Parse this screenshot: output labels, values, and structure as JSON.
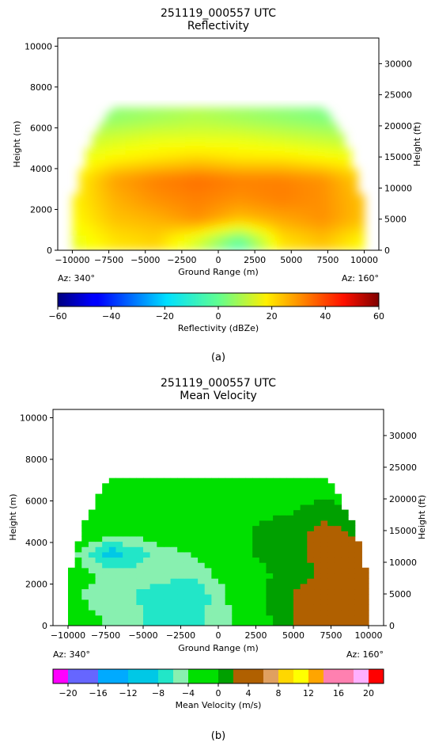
{
  "chart_data": [
    {
      "type": "heatmap",
      "panel_label": "(a)",
      "title_line1": "251119_000557 UTC",
      "title_line2": "Reflectivity",
      "xlabel": "Ground Range (m)",
      "ylabel_left": "Height (m)",
      "ylabel_right": "Height (ft)",
      "xlim": [
        -11000,
        11000
      ],
      "ylim": [
        0,
        10400
      ],
      "x_ticks": [
        -10000,
        -7500,
        -5000,
        -2500,
        0,
        2500,
        5000,
        7500,
        10000
      ],
      "x_tick_labels": [
        "−10000",
        "−7500",
        "−5000",
        "−2500",
        "0",
        "2500",
        "5000",
        "7500",
        "10000"
      ],
      "y_ticks": [
        0,
        2000,
        4000,
        6000,
        8000,
        10000
      ],
      "y_tick_labels": [
        "0",
        "2000",
        "4000",
        "6000",
        "8000",
        "10000"
      ],
      "y_right_ticks_ft": [
        0,
        5000,
        10000,
        15000,
        20000,
        25000,
        30000
      ],
      "y_right_tick_labels": [
        "0",
        "5000",
        "10000",
        "15000",
        "20000",
        "25000",
        "30000"
      ],
      "az_left": "Az: 340°",
      "az_right": "Az: 160°",
      "colorbar": {
        "label": "Reflectivity (dBZe)",
        "range": [
          -60,
          60
        ],
        "ticks": [
          -60,
          -40,
          -20,
          0,
          20,
          40,
          60
        ],
        "tick_labels": [
          "−60",
          "−40",
          "−20",
          "0",
          "20",
          "40",
          "60"
        ],
        "colormap": "jet"
      },
      "echo_top_height_m": 7000,
      "field_dBZe": {
        "rows_height_m": [
          500,
          1500,
          2500,
          3500,
          4500,
          5500,
          6500
        ],
        "values": [
          [
            12,
            18,
            20,
            10,
            -5,
            18,
            22,
            15
          ],
          [
            15,
            22,
            24,
            28,
            22,
            25,
            28,
            22
          ],
          [
            16,
            24,
            28,
            30,
            28,
            30,
            28,
            22
          ],
          [
            15,
            26,
            30,
            32,
            30,
            30,
            28,
            20
          ],
          [
            12,
            16,
            18,
            20,
            18,
            18,
            16,
            14
          ],
          [
            8,
            10,
            12,
            12,
            12,
            10,
            8,
            6
          ],
          [
            0,
            2,
            4,
            6,
            4,
            2,
            0,
            -2
          ]
        ]
      }
    },
    {
      "type": "heatmap",
      "panel_label": "(b)",
      "title_line1": "251119_000557 UTC",
      "title_line2": "Mean Velocity",
      "xlabel": "Ground Range (m)",
      "ylabel_left": "Height (m)",
      "ylabel_right": "Height (ft)",
      "xlim": [
        -11000,
        11000
      ],
      "ylim": [
        0,
        10400
      ],
      "x_ticks": [
        -10000,
        -7500,
        -5000,
        -2500,
        0,
        2500,
        5000,
        7500,
        10000
      ],
      "x_tick_labels": [
        "−10000",
        "−7500",
        "−5000",
        "−2500",
        "0",
        "2500",
        "5000",
        "7500",
        "10000"
      ],
      "y_ticks": [
        0,
        2000,
        4000,
        6000,
        8000,
        10000
      ],
      "y_tick_labels": [
        "0",
        "2000",
        "4000",
        "6000",
        "8000",
        "10000"
      ],
      "y_right_ticks_ft": [
        0,
        5000,
        10000,
        15000,
        20000,
        25000,
        30000
      ],
      "y_right_tick_labels": [
        "0",
        "5000",
        "10000",
        "15000",
        "20000",
        "25000",
        "30000"
      ],
      "az_left": "Az: 340°",
      "az_right": "Az: 160°",
      "colorbar": {
        "label": "Mean Velocity (m/s)",
        "range": [
          -22,
          22
        ],
        "ticks": [
          -20,
          -16,
          -12,
          -8,
          -4,
          0,
          4,
          8,
          12,
          16,
          20
        ],
        "tick_labels": [
          "−20",
          "−16",
          "−12",
          "−8",
          "−4",
          "0",
          "4",
          "8",
          "12",
          "16",
          "20"
        ],
        "discrete_colors": [
          "#ff00ff",
          "#6666ff",
          "#6666ff",
          "#00aaff",
          "#00aaff",
          "#00c8e6",
          "#00c8e6",
          "#22e6c8",
          "#88f0b0",
          "#00e000",
          "#00e000",
          "#00a000",
          "#b06000",
          "#b06000",
          "#e0a060",
          "#ffd700",
          "#ffff00",
          "#ffa500",
          "#ff80b0",
          "#ff80b0",
          "#ffb0ff",
          "#ff0000"
        ]
      },
      "echo_top_height_m": 7100,
      "field_mps": {
        "rows_height_m": [
          500,
          1500,
          2500,
          3500,
          4500,
          5500,
          6500
        ],
        "values": [
          [
            -3,
            -5,
            -7,
            -7,
            -4,
            1,
            3,
            3
          ],
          [
            -4,
            -6,
            -7,
            -8,
            -3,
            1,
            3,
            2
          ],
          [
            -3,
            -5,
            -6,
            -6,
            -2,
            0,
            2,
            2
          ],
          [
            -3,
            -10,
            -6,
            -4,
            -1,
            1,
            2,
            2
          ],
          [
            1,
            -4,
            -3,
            -1,
            -1,
            1,
            2,
            1
          ],
          [
            -2,
            -3,
            -2,
            -1,
            -1,
            -1,
            1,
            0
          ],
          [
            -3,
            -3,
            -2,
            -1,
            -1,
            -1,
            -2,
            -2
          ]
        ]
      }
    }
  ]
}
